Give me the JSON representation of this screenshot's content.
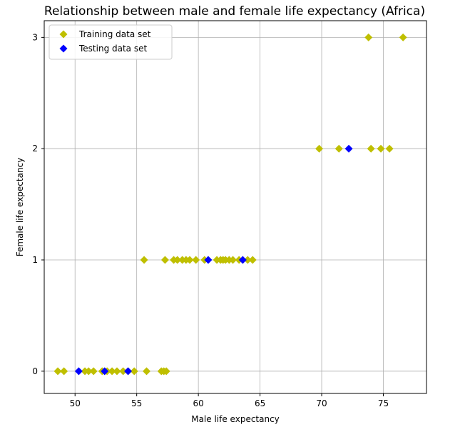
{
  "chart_data": {
    "type": "scatter",
    "title": "Relationship between male and female life expectancy (Africa)",
    "xlabel": "Male life expectancy",
    "ylabel": "Female life expectancy",
    "xlim": [
      47.5,
      78.5
    ],
    "ylim": [
      -0.2,
      3.15
    ],
    "xticks": [
      50,
      55,
      60,
      65,
      70,
      75
    ],
    "yticks": [
      0,
      1,
      2,
      3
    ],
    "grid": true,
    "legend_position": "top-left",
    "marker": "diamond",
    "series": [
      {
        "name": "Training data set",
        "color": "#bfbf00",
        "points": [
          [
            48.6,
            0
          ],
          [
            49.1,
            0
          ],
          [
            50.8,
            0
          ],
          [
            51.1,
            0
          ],
          [
            51.5,
            0
          ],
          [
            52.2,
            0
          ],
          [
            52.6,
            0
          ],
          [
            53.0,
            0
          ],
          [
            53.4,
            0
          ],
          [
            53.9,
            0
          ],
          [
            54.3,
            0
          ],
          [
            54.8,
            0
          ],
          [
            55.8,
            0
          ],
          [
            57.0,
            0
          ],
          [
            57.2,
            0
          ],
          [
            57.4,
            0
          ],
          [
            55.6,
            1
          ],
          [
            57.3,
            1
          ],
          [
            58.0,
            1
          ],
          [
            58.3,
            1
          ],
          [
            58.7,
            1
          ],
          [
            59.0,
            1
          ],
          [
            59.3,
            1
          ],
          [
            59.8,
            1
          ],
          [
            60.5,
            1
          ],
          [
            61.5,
            1
          ],
          [
            61.8,
            1
          ],
          [
            62.0,
            1
          ],
          [
            62.2,
            1
          ],
          [
            62.5,
            1
          ],
          [
            62.8,
            1
          ],
          [
            63.3,
            1
          ],
          [
            64.0,
            1
          ],
          [
            64.4,
            1
          ],
          [
            69.8,
            2
          ],
          [
            71.4,
            2
          ],
          [
            74.0,
            2
          ],
          [
            74.8,
            2
          ],
          [
            75.5,
            2
          ],
          [
            73.8,
            3
          ],
          [
            76.6,
            3
          ]
        ]
      },
      {
        "name": "Testing data set",
        "color": "#0000ff",
        "points": [
          [
            50.3,
            0
          ],
          [
            52.4,
            0
          ],
          [
            54.3,
            0
          ],
          [
            60.8,
            1
          ],
          [
            63.6,
            1
          ],
          [
            72.2,
            2
          ]
        ]
      }
    ]
  }
}
